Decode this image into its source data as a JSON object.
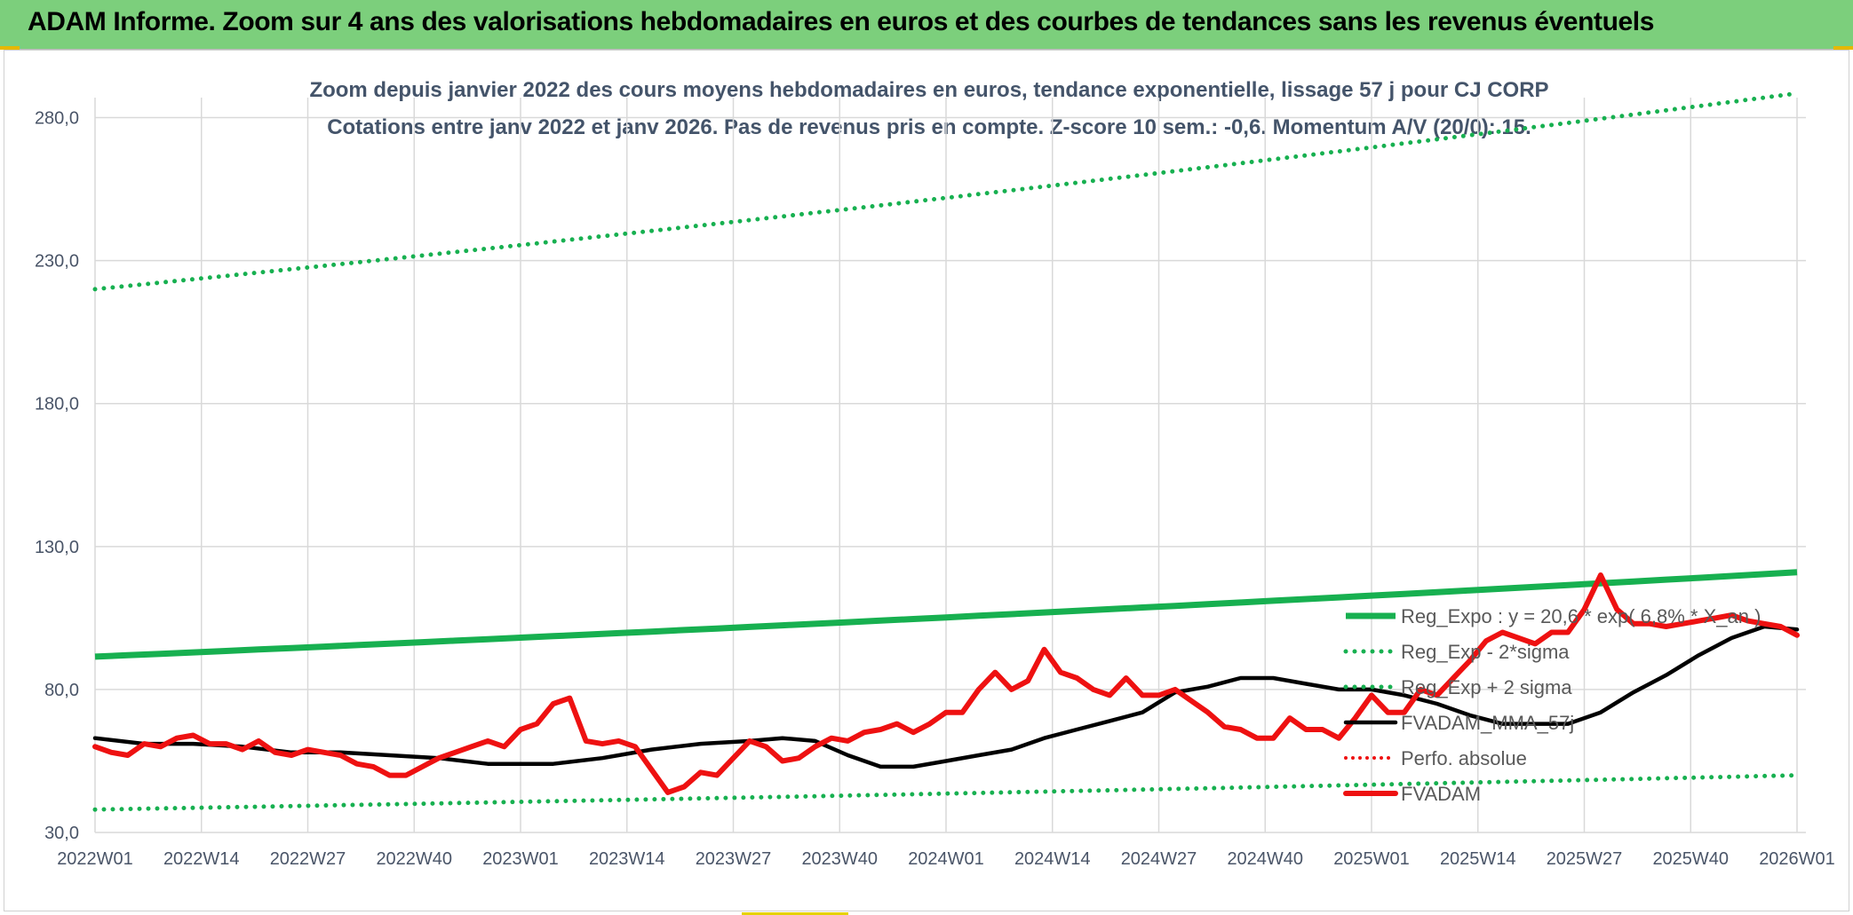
{
  "header": {
    "title": "ADAM Informe. Zoom sur 4 ans des valorisations hebdomadaires en euros et des courbes de tendances sans les revenus éventuels"
  },
  "colors": {
    "banner": "#7ccf7c",
    "fvadam": "#ee1111",
    "fvadam_mma": "#000000",
    "reg_expo": "#17b050",
    "reg_band": "#17b050",
    "perfo": "#ee1111",
    "grid": "#d9d9d9",
    "axis_text": "#4a5568",
    "title_text": "#44546a"
  },
  "chart_data": {
    "type": "line",
    "title_line1": "Zoom depuis janvier 2022 des cours moyens hebdomadaires en euros, tendance exponentielle, lissage 57 j pour CJ CORP",
    "title_line2": "Cotations entre janv 2022 et janv 2026. Pas de revenus pris en compte. Z-score 10 sem.: -0,6. Momentum A/V (20/0): 15.",
    "x_tick_labels": [
      "2022W01",
      "2022W14",
      "2022W27",
      "2022W40",
      "2023W01",
      "2023W14",
      "2023W27",
      "2023W40",
      "2024W01",
      "2024W14",
      "2024W27",
      "2024W40",
      "2025W01",
      "2025W14",
      "2025W27",
      "2025W40",
      "2026W01"
    ],
    "x_index_range": [
      0,
      208
    ],
    "y_ticks": [
      30,
      80,
      130,
      180,
      230,
      280
    ],
    "y_tick_labels": [
      "30,0",
      "80,0",
      "130,0",
      "180,0",
      "230,0",
      "280,0"
    ],
    "ylim": [
      30,
      287
    ],
    "grid": true,
    "legend_position": "right, inside plot",
    "series": [
      {
        "name": "Reg_Expo : y = 20,6 * exp( 6,8% * X_an )",
        "style": "solid-thick",
        "x": [
          0,
          208
        ],
        "y": [
          91.5,
          121.0
        ],
        "exponential": true
      },
      {
        "name": "Reg_Exp - 2*sigma",
        "style": "dotted",
        "x": [
          0,
          208
        ],
        "y": [
          38.0,
          50.0
        ],
        "exponential": true
      },
      {
        "name": "Reg_Exp + 2 sigma",
        "style": "dotted",
        "x": [
          0,
          208
        ],
        "y": [
          220.0,
          288.5
        ],
        "exponential": true
      },
      {
        "name": "FVADAM_MMA_57j",
        "style": "solid",
        "x": [
          0,
          6,
          12,
          18,
          24,
          30,
          36,
          42,
          48,
          56,
          62,
          68,
          74,
          80,
          84,
          88,
          92,
          96,
          100,
          104,
          108,
          112,
          116,
          120,
          124,
          128,
          132,
          136,
          140,
          144,
          148,
          152,
          156,
          160,
          164,
          168,
          172,
          176,
          180,
          184,
          188,
          192,
          196,
          200,
          204,
          208
        ],
        "y": [
          63,
          61,
          61,
          60,
          58,
          58,
          57,
          56,
          54,
          54,
          56,
          59,
          61,
          62,
          63,
          62,
          57,
          53,
          53,
          55,
          57,
          59,
          63,
          66,
          69,
          72,
          79,
          81,
          84,
          84,
          82,
          80,
          80,
          78,
          75,
          71,
          68,
          68,
          68,
          72,
          79,
          85,
          92,
          98,
          102,
          101
        ]
      },
      {
        "name": "Perfo. absolue",
        "style": "dotted",
        "x": [],
        "y": []
      },
      {
        "name": "FVADAM",
        "style": "solid-thick",
        "x": [
          0,
          2,
          4,
          6,
          8,
          10,
          12,
          14,
          16,
          18,
          20,
          22,
          24,
          26,
          28,
          30,
          32,
          34,
          36,
          38,
          40,
          42,
          44,
          46,
          48,
          50,
          52,
          54,
          56,
          58,
          60,
          62,
          64,
          66,
          68,
          70,
          72,
          74,
          76,
          78,
          80,
          82,
          84,
          86,
          88,
          90,
          92,
          94,
          96,
          98,
          100,
          102,
          104,
          106,
          108,
          110,
          112,
          114,
          116,
          118,
          120,
          122,
          124,
          126,
          128,
          130,
          132,
          134,
          136,
          138,
          140,
          142,
          144,
          146,
          148,
          150,
          152,
          154,
          156,
          158,
          160,
          162,
          164,
          166,
          168,
          170,
          172,
          174,
          176,
          178,
          180,
          182,
          184,
          186,
          188,
          190,
          192,
          194,
          196,
          198,
          200,
          202,
          204,
          206,
          208
        ],
        "y": [
          60,
          58,
          57,
          61,
          60,
          63,
          64,
          61,
          61,
          59,
          62,
          58,
          57,
          59,
          58,
          57,
          54,
          53,
          50,
          50,
          53,
          56,
          58,
          60,
          62,
          60,
          66,
          68,
          75,
          77,
          62,
          61,
          62,
          60,
          52,
          44,
          46,
          51,
          50,
          56,
          62,
          60,
          55,
          56,
          60,
          63,
          62,
          65,
          66,
          68,
          65,
          68,
          72,
          72,
          80,
          86,
          80,
          83,
          94,
          86,
          84,
          80,
          78,
          84,
          78,
          78,
          80,
          76,
          72,
          67,
          66,
          63,
          63,
          70,
          66,
          66,
          63,
          70,
          78,
          72,
          72,
          80,
          78,
          84,
          90,
          97,
          100,
          98,
          96,
          100,
          100,
          108,
          120,
          108,
          103,
          103,
          102,
          103,
          104,
          105,
          106,
          104,
          103,
          102,
          99
        ]
      }
    ]
  }
}
